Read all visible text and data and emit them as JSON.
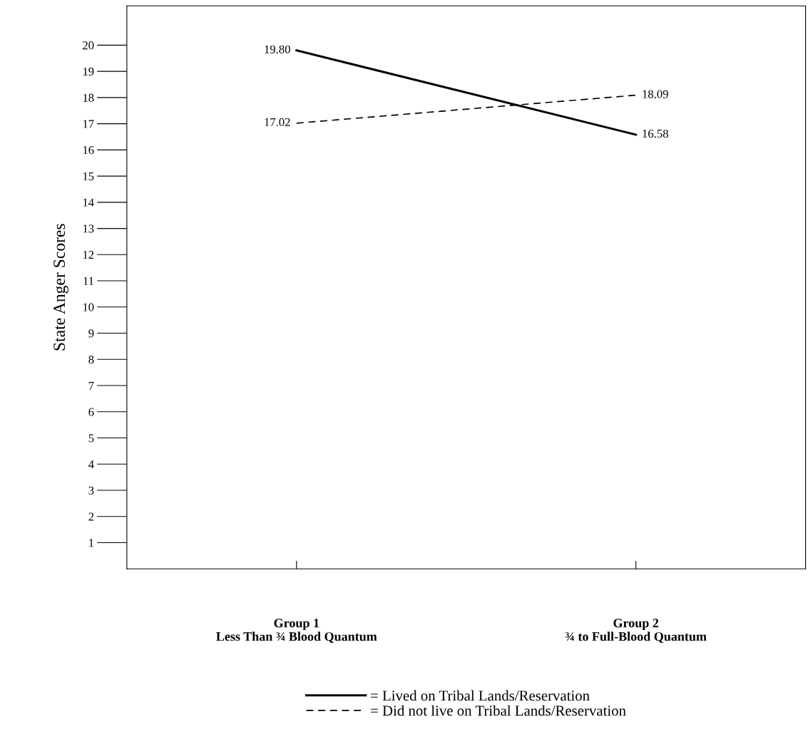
{
  "chart_data": {
    "type": "line",
    "ylabel": "State Anger Scores",
    "categories": [
      "Group 1\nLess Than ¾ Blood Quantum",
      "Group 2\n¾ to Full-Blood Quantum"
    ],
    "series": [
      {
        "name": "= Lived on Tribal Lands/Reservation",
        "color": "#000000",
        "values": [
          19.8,
          16.58
        ],
        "value_labels": [
          "19.80",
          "16.58"
        ],
        "line_style": "solid"
      },
      {
        "name": "= Did not live on Tribal Lands/Reservation",
        "color": "#000000",
        "values": [
          17.02,
          18.09
        ],
        "value_labels": [
          "17.02",
          "18.09"
        ],
        "line_style": "dashed"
      }
    ],
    "ylim": [
      0,
      21.5
    ],
    "yticks": [
      1,
      2,
      3,
      4,
      5,
      6,
      7,
      8,
      9,
      10,
      11,
      12,
      13,
      14,
      15,
      16,
      17,
      18,
      19,
      20
    ],
    "grid": false,
    "legend": "bottom",
    "marker": "none"
  }
}
